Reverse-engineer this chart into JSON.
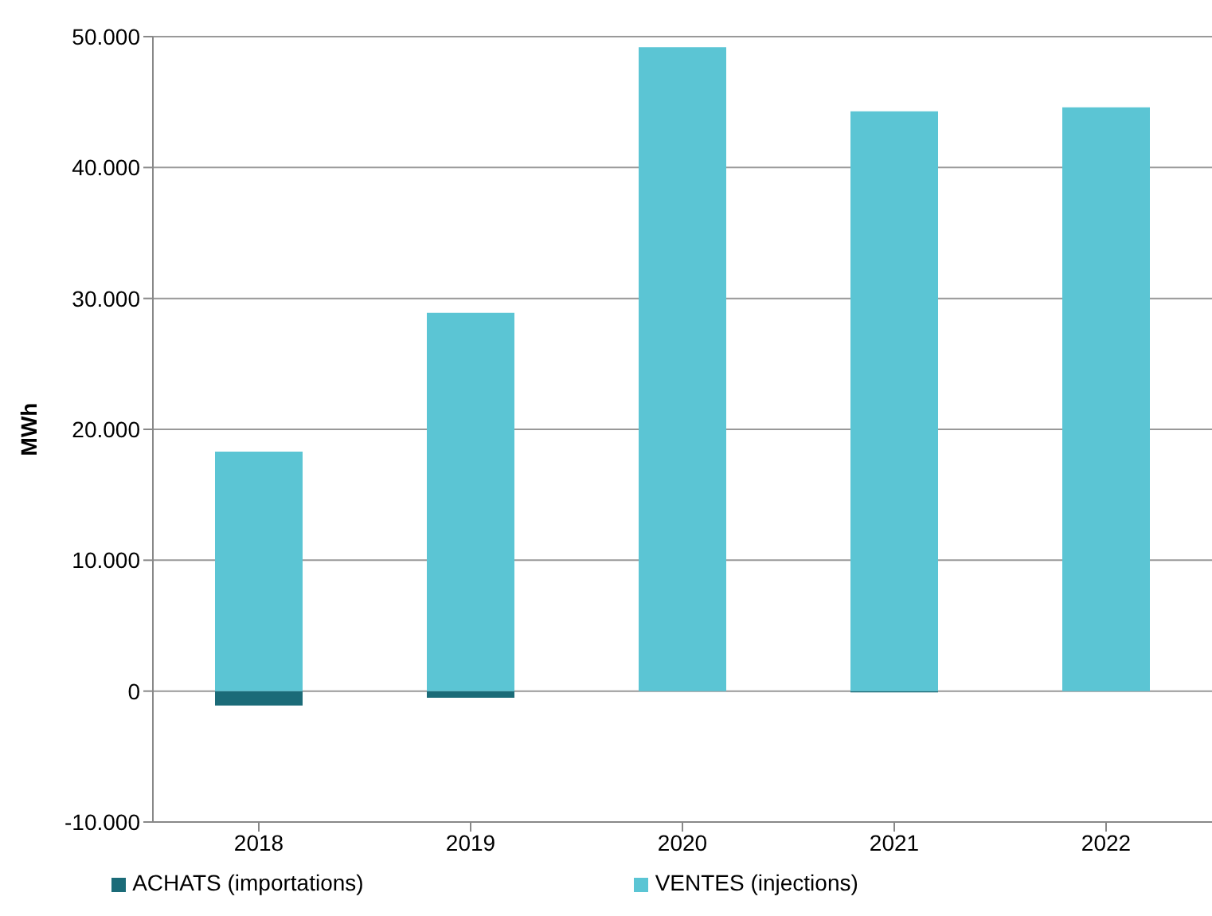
{
  "chart_data": {
    "type": "bar",
    "ylabel": "MWh",
    "categories": [
      "2018",
      "2019",
      "2020",
      "2021",
      "2022"
    ],
    "stacked": true,
    "series": [
      {
        "name": "ACHATS (importations)",
        "color": "#1b6b78",
        "values": [
          -1100,
          -500,
          0,
          -100,
          0
        ]
      },
      {
        "name": "VENTES (injections)",
        "color": "#5bc5d4",
        "values": [
          18300,
          28900,
          49200,
          44300,
          44600
        ]
      }
    ],
    "ylim": [
      -10000,
      50000
    ],
    "yticks": [
      {
        "value": -10000,
        "label": "-10.000"
      },
      {
        "value": 0,
        "label": "0"
      },
      {
        "value": 10000,
        "label": "10.000"
      },
      {
        "value": 20000,
        "label": "20.000"
      },
      {
        "value": 30000,
        "label": "30.000"
      },
      {
        "value": 40000,
        "label": "40.000"
      },
      {
        "value": 50000,
        "label": "50.000"
      }
    ],
    "grid": "y",
    "legend": "bottom"
  }
}
